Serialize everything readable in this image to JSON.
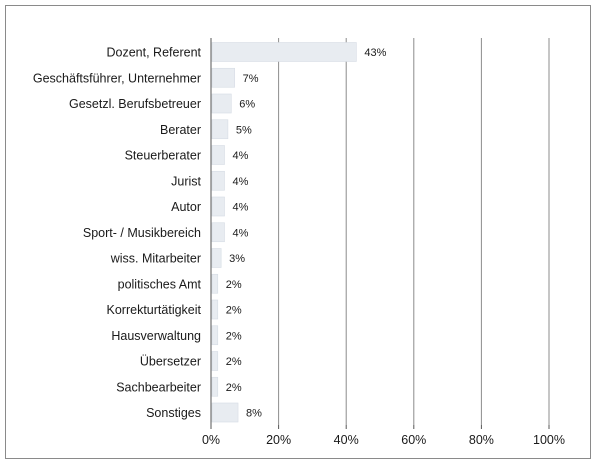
{
  "chart_data": {
    "type": "bar",
    "orientation": "horizontal",
    "categories": [
      "Dozent, Referent",
      "Geschäftsführer, Unternehmer",
      "Gesetzl. Berufsbetreuer",
      "Berater",
      "Steuerberater",
      "Jurist",
      "Autor",
      "Sport- / Musikbereich",
      "wiss. Mitarbeiter",
      "politisches Amt",
      "Korrekturtätigkeit",
      "Hausverwaltung",
      "Übersetzer",
      "Sachbearbeiter",
      "Sonstiges"
    ],
    "values": [
      43,
      7,
      6,
      5,
      4,
      4,
      4,
      4,
      3,
      2,
      2,
      2,
      2,
      2,
      8
    ],
    "value_labels": [
      "43%",
      "7%",
      "6%",
      "5%",
      "4%",
      "4%",
      "4%",
      "4%",
      "3%",
      "2%",
      "2%",
      "2%",
      "2%",
      "2%",
      "8%"
    ],
    "xlim": [
      0,
      100
    ],
    "x_ticks": [
      0,
      20,
      40,
      60,
      80,
      100
    ],
    "x_tick_labels": [
      "0%",
      "20%",
      "40%",
      "60%",
      "80%",
      "100%"
    ],
    "grid": "vertical",
    "legend": "none",
    "colors": {
      "bar": "#e8ecf1",
      "bar_edge": "#d6dce4",
      "grid": "#8c8c8c",
      "frame": "#8a8a8a"
    }
  }
}
